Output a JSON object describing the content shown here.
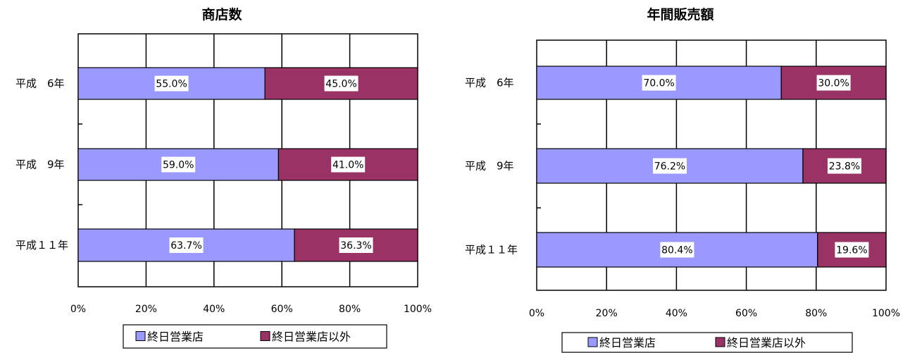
{
  "colors": {
    "series1": "#9999ff",
    "series2": "#993366"
  },
  "legend": {
    "series1": "終日営業店",
    "series2": "終日営業店以外"
  },
  "chart_data": [
    {
      "type": "bar",
      "orientation": "horizontal",
      "stacked": "percent",
      "title": "商店数",
      "categories": [
        "平成　6年",
        "平成　9年",
        "平成１１年"
      ],
      "series": [
        {
          "name": "終日営業店",
          "values": [
            55.0,
            59.0,
            63.7
          ],
          "labels": [
            "55.0%",
            "59.0%",
            "63.7%"
          ]
        },
        {
          "name": "終日営業店以外",
          "values": [
            45.0,
            41.0,
            36.3
          ],
          "labels": [
            "45.0%",
            "41.0%",
            "36.3%"
          ]
        }
      ],
      "xlim": [
        0,
        100
      ],
      "xticks": [
        "0%",
        "20%",
        "40%",
        "60%",
        "80%",
        "100%"
      ],
      "grid": true,
      "legend_position": "bottom"
    },
    {
      "type": "bar",
      "orientation": "horizontal",
      "stacked": "percent",
      "title": "年間販売額",
      "categories": [
        "平成　6年",
        "平成　9年",
        "平成１１年"
      ],
      "series": [
        {
          "name": "終日営業店",
          "values": [
            70.0,
            76.2,
            80.4
          ],
          "labels": [
            "70.0%",
            "76.2%",
            "80.4%"
          ]
        },
        {
          "name": "終日営業店以外",
          "values": [
            30.0,
            23.8,
            19.6
          ],
          "labels": [
            "30.0%",
            "23.8%",
            "19.6%"
          ]
        }
      ],
      "xlim": [
        0,
        100
      ],
      "xticks": [
        "0%",
        "20%",
        "40%",
        "60%",
        "80%",
        "100%"
      ],
      "grid": true,
      "legend_position": "bottom"
    }
  ]
}
